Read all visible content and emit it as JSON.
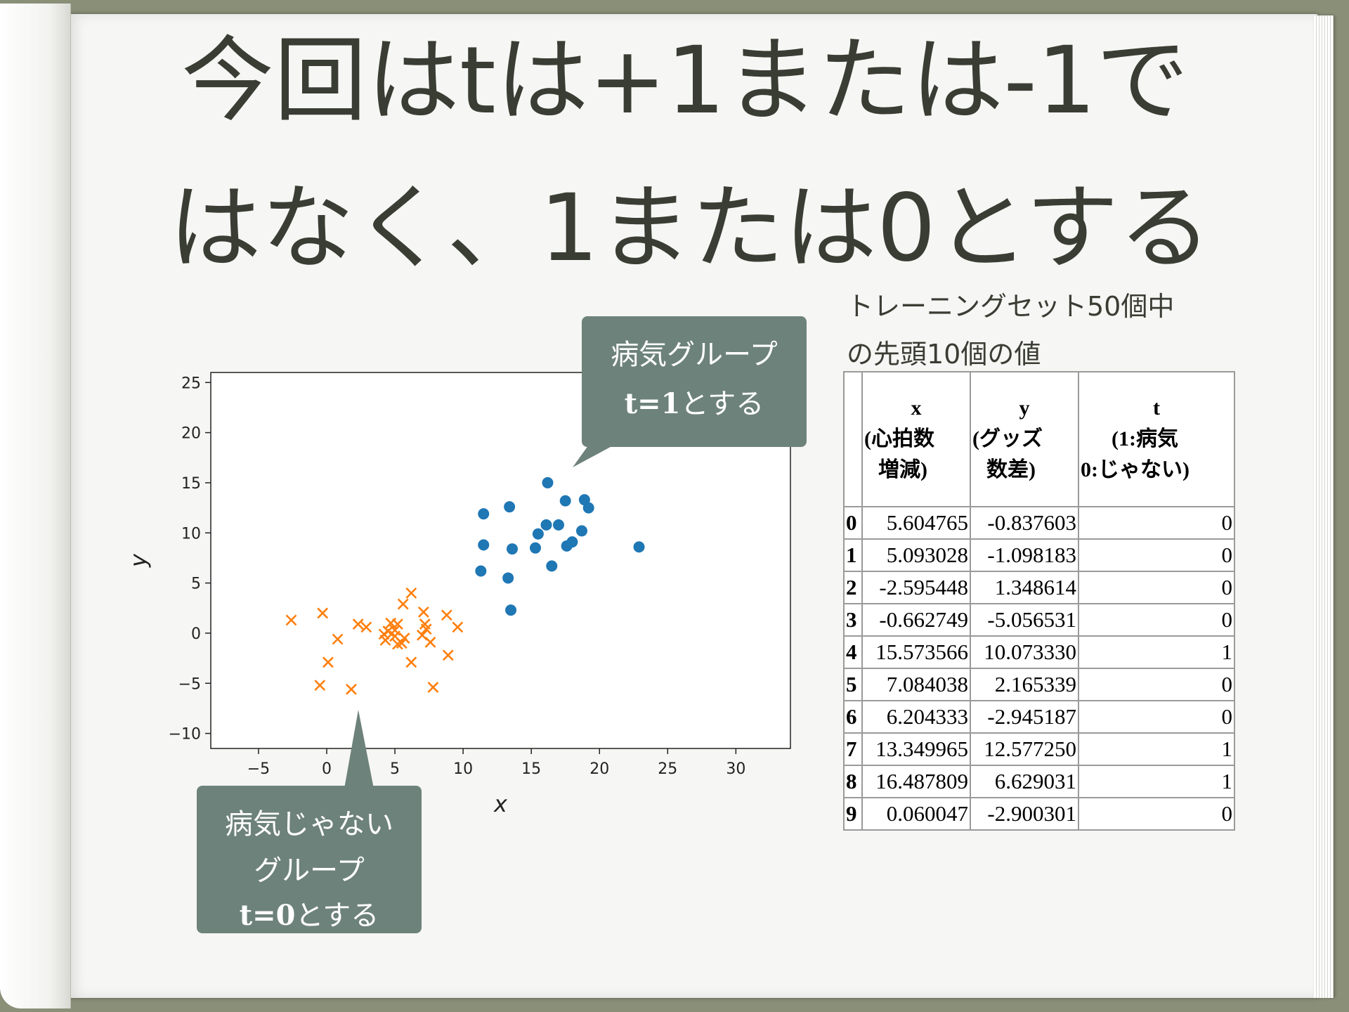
{
  "title": {
    "line1": "今回はtは+1または-1で",
    "line2": "はなく、1または0とする"
  },
  "caption": {
    "line1": "トレーニングセット50個中",
    "line2": "の先頭10個の値"
  },
  "callout_sick": {
    "line1": "病気グループ",
    "line2_bold": "t=1",
    "line2_rest": "とする"
  },
  "callout_healthy": {
    "line1": "病気じゃない",
    "line2": "グループ",
    "line3_bold": "t=0",
    "line3_rest": "とする"
  },
  "table": {
    "headers": {
      "x": [
        "x",
        "(心拍数",
        "増減)"
      ],
      "y": [
        "y",
        "(グッズ",
        "数差)"
      ],
      "t": [
        "t",
        "(1:病気",
        "0:じゃない)"
      ]
    },
    "rows": [
      {
        "idx": "0",
        "x": "5.604765",
        "y": "-0.837603",
        "t": "0"
      },
      {
        "idx": "1",
        "x": "5.093028",
        "y": "-1.098183",
        "t": "0"
      },
      {
        "idx": "2",
        "x": "-2.595448",
        "y": "1.348614",
        "t": "0"
      },
      {
        "idx": "3",
        "x": "-0.662749",
        "y": "-5.056531",
        "t": "0"
      },
      {
        "idx": "4",
        "x": "15.573566",
        "y": "10.073330",
        "t": "1"
      },
      {
        "idx": "5",
        "x": "7.084038",
        "y": "2.165339",
        "t": "0"
      },
      {
        "idx": "6",
        "x": "6.204333",
        "y": "-2.945187",
        "t": "0"
      },
      {
        "idx": "7",
        "x": "13.349965",
        "y": "12.577250",
        "t": "1"
      },
      {
        "idx": "8",
        "x": "16.487809",
        "y": "6.629031",
        "t": "1"
      },
      {
        "idx": "9",
        "x": "0.060047",
        "y": "-2.900301",
        "t": "0"
      }
    ]
  },
  "chart_data": {
    "type": "scatter",
    "xlabel": "x",
    "ylabel": "y",
    "xlim": [
      -8.5,
      34
    ],
    "ylim": [
      -11.5,
      26
    ],
    "xticks": [
      -5,
      0,
      5,
      10,
      15,
      20,
      25,
      30
    ],
    "yticks": [
      -10,
      -5,
      0,
      5,
      10,
      15,
      20,
      25
    ],
    "xtick_labels": [
      "−5",
      "0",
      "5",
      "10",
      "15",
      "20",
      "25",
      "30"
    ],
    "ytick_labels": [
      "−10",
      "−5",
      "0",
      "5",
      "10",
      "15",
      "20",
      "25"
    ],
    "grid": false,
    "series": [
      {
        "marker": "circle",
        "color": "#1f77b4",
        "points": [
          [
            11.5,
            11.9
          ],
          [
            13.4,
            12.6
          ],
          [
            16.2,
            15.0
          ],
          [
            17.5,
            13.2
          ],
          [
            18.9,
            13.3
          ],
          [
            19.2,
            12.5
          ],
          [
            11.5,
            8.8
          ],
          [
            13.6,
            8.4
          ],
          [
            15.3,
            8.5
          ],
          [
            15.5,
            9.9
          ],
          [
            16.1,
            10.8
          ],
          [
            17.0,
            10.8
          ],
          [
            18.0,
            9.1
          ],
          [
            17.6,
            8.7
          ],
          [
            18.7,
            10.2
          ],
          [
            11.3,
            6.2
          ],
          [
            13.3,
            5.5
          ],
          [
            16.5,
            6.7
          ],
          [
            22.9,
            8.6
          ],
          [
            13.5,
            2.3
          ]
        ]
      },
      {
        "marker": "x",
        "color": "#ff7f0e",
        "points": [
          [
            -2.6,
            1.3
          ],
          [
            -0.3,
            2.0
          ],
          [
            0.8,
            -0.6
          ],
          [
            0.1,
            -2.9
          ],
          [
            -0.5,
            -5.2
          ],
          [
            1.8,
            -5.6
          ],
          [
            2.3,
            0.9
          ],
          [
            2.9,
            0.6
          ],
          [
            4.3,
            -0.7
          ],
          [
            4.5,
            0.2
          ],
          [
            4.7,
            1.0
          ],
          [
            5.0,
            -0.3
          ],
          [
            5.2,
            0.9
          ],
          [
            5.5,
            -1.0
          ],
          [
            5.7,
            -0.5
          ],
          [
            5.2,
            -1.1
          ],
          [
            5.6,
            2.9
          ],
          [
            6.2,
            4.0
          ],
          [
            6.2,
            -2.9
          ],
          [
            7.1,
            2.1
          ],
          [
            7.2,
            0.9
          ],
          [
            7.0,
            -0.2
          ],
          [
            7.3,
            0.4
          ],
          [
            7.6,
            -0.9
          ],
          [
            7.8,
            -5.4
          ],
          [
            8.8,
            1.8
          ],
          [
            8.9,
            -2.2
          ],
          [
            9.6,
            0.6
          ],
          [
            5.0,
            0.3
          ],
          [
            4.2,
            -0.1
          ]
        ]
      }
    ]
  }
}
